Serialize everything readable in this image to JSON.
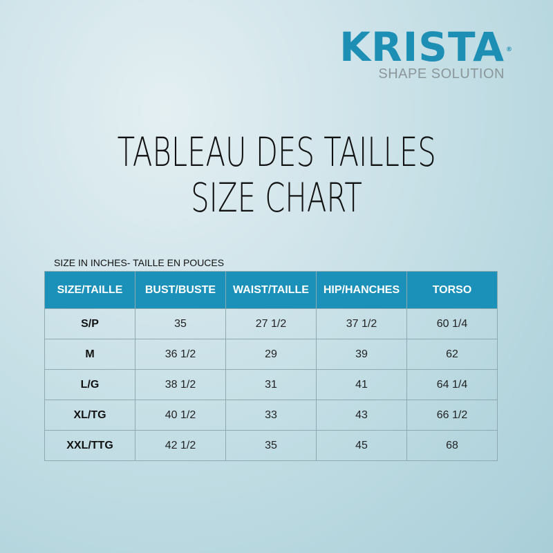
{
  "logo": {
    "brand": "KRISTA",
    "registered": "®",
    "tagline": "SHAPE SOLUTION"
  },
  "title": {
    "line1": "TABLEAU DES TAILLES",
    "line2": "SIZE CHART"
  },
  "caption": "SIZE IN INCHES- TAILLE EN POUCES",
  "colors": {
    "brand": "#1d8fb5",
    "header": "#1b90b8"
  },
  "table": {
    "headers": [
      "SIZE/TAILLE",
      "BUST/BUSTE",
      "WAIST/TAILLE",
      "HIP/HANCHES",
      "TORSO"
    ],
    "rows": [
      [
        "S/P",
        "35",
        "27 1/2",
        "37 1/2",
        "60 1/4"
      ],
      [
        "M",
        "36 1/2",
        "29",
        "39",
        "62"
      ],
      [
        "L/G",
        "38 1/2",
        "31",
        "41",
        "64 1/4"
      ],
      [
        "XL/TG",
        "40 1/2",
        "33",
        "43",
        "66 1/2"
      ],
      [
        "XXL/TTG",
        "42 1/2",
        "35",
        "45",
        "68"
      ]
    ]
  }
}
